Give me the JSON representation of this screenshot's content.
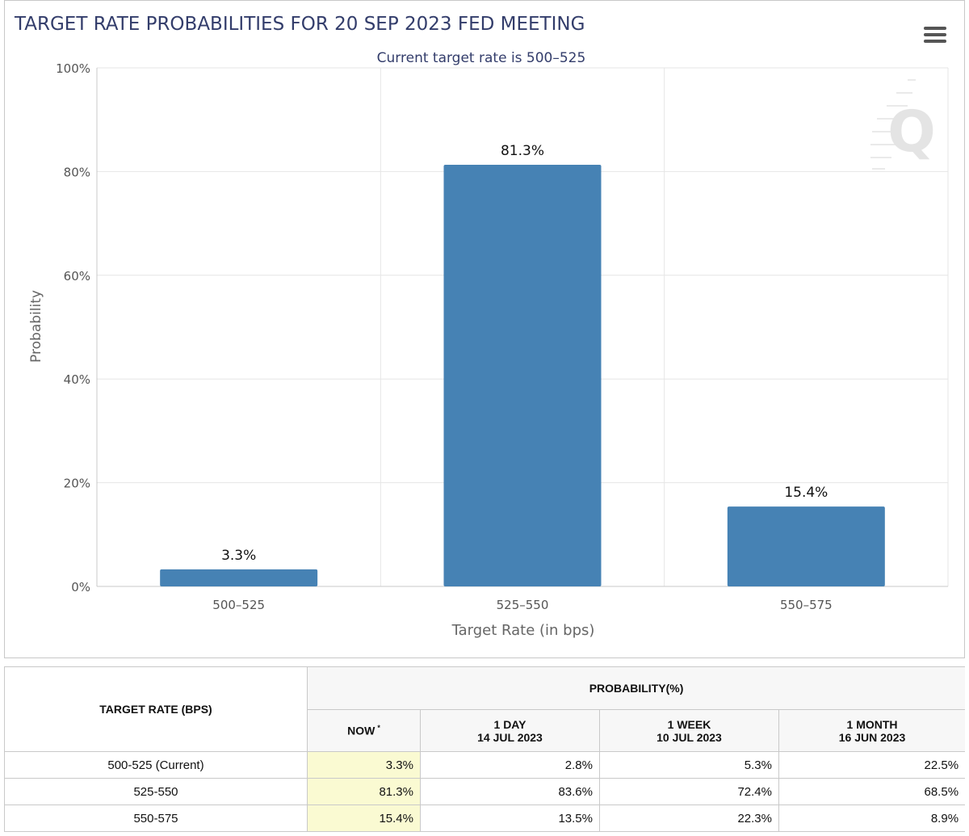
{
  "colors": {
    "bar": "#4682b4",
    "grid": "#e6e6e6",
    "title": "#333d6b",
    "now_cell": "#fafad2"
  },
  "chart_data": {
    "type": "bar",
    "title": "TARGET RATE PROBABILITIES FOR 20 SEP 2023 FED MEETING",
    "subtitle": "Current target rate is 500–525",
    "xlabel": "Target Rate (in bps)",
    "ylabel": "Probability",
    "categories": [
      "500–525",
      "525–550",
      "550–575"
    ],
    "values": [
      3.3,
      81.3,
      15.4
    ],
    "data_labels": [
      "3.3%",
      "81.3%",
      "15.4%"
    ],
    "ylim": [
      0,
      100
    ],
    "yticks": [
      0,
      20,
      40,
      60,
      80,
      100
    ],
    "ytick_labels": [
      "0%",
      "20%",
      "40%",
      "60%",
      "80%",
      "100%"
    ],
    "grid": true,
    "legend": "none"
  },
  "menu": {
    "icon": "hamburger-menu-icon"
  },
  "watermark": {
    "icon": "q-logo-icon",
    "text": "Q"
  },
  "table": {
    "rate_header": "TARGET RATE (BPS)",
    "prob_header": "PROBABILITY(%)",
    "columns": [
      {
        "line1": "NOW",
        "line2": "",
        "mark": "*"
      },
      {
        "line1": "1 DAY",
        "line2": "14 JUL 2023",
        "mark": ""
      },
      {
        "line1": "1 WEEK",
        "line2": "10 JUL 2023",
        "mark": ""
      },
      {
        "line1": "1 MONTH",
        "line2": "16 JUN 2023",
        "mark": ""
      }
    ],
    "rows": [
      {
        "rate": "500-525 (Current)",
        "values": [
          "3.3%",
          "2.8%",
          "5.3%",
          "22.5%"
        ]
      },
      {
        "rate": "525-550",
        "values": [
          "81.3%",
          "83.6%",
          "72.4%",
          "68.5%"
        ]
      },
      {
        "rate": "550-575",
        "values": [
          "15.4%",
          "13.5%",
          "22.3%",
          "8.9%"
        ]
      }
    ]
  }
}
